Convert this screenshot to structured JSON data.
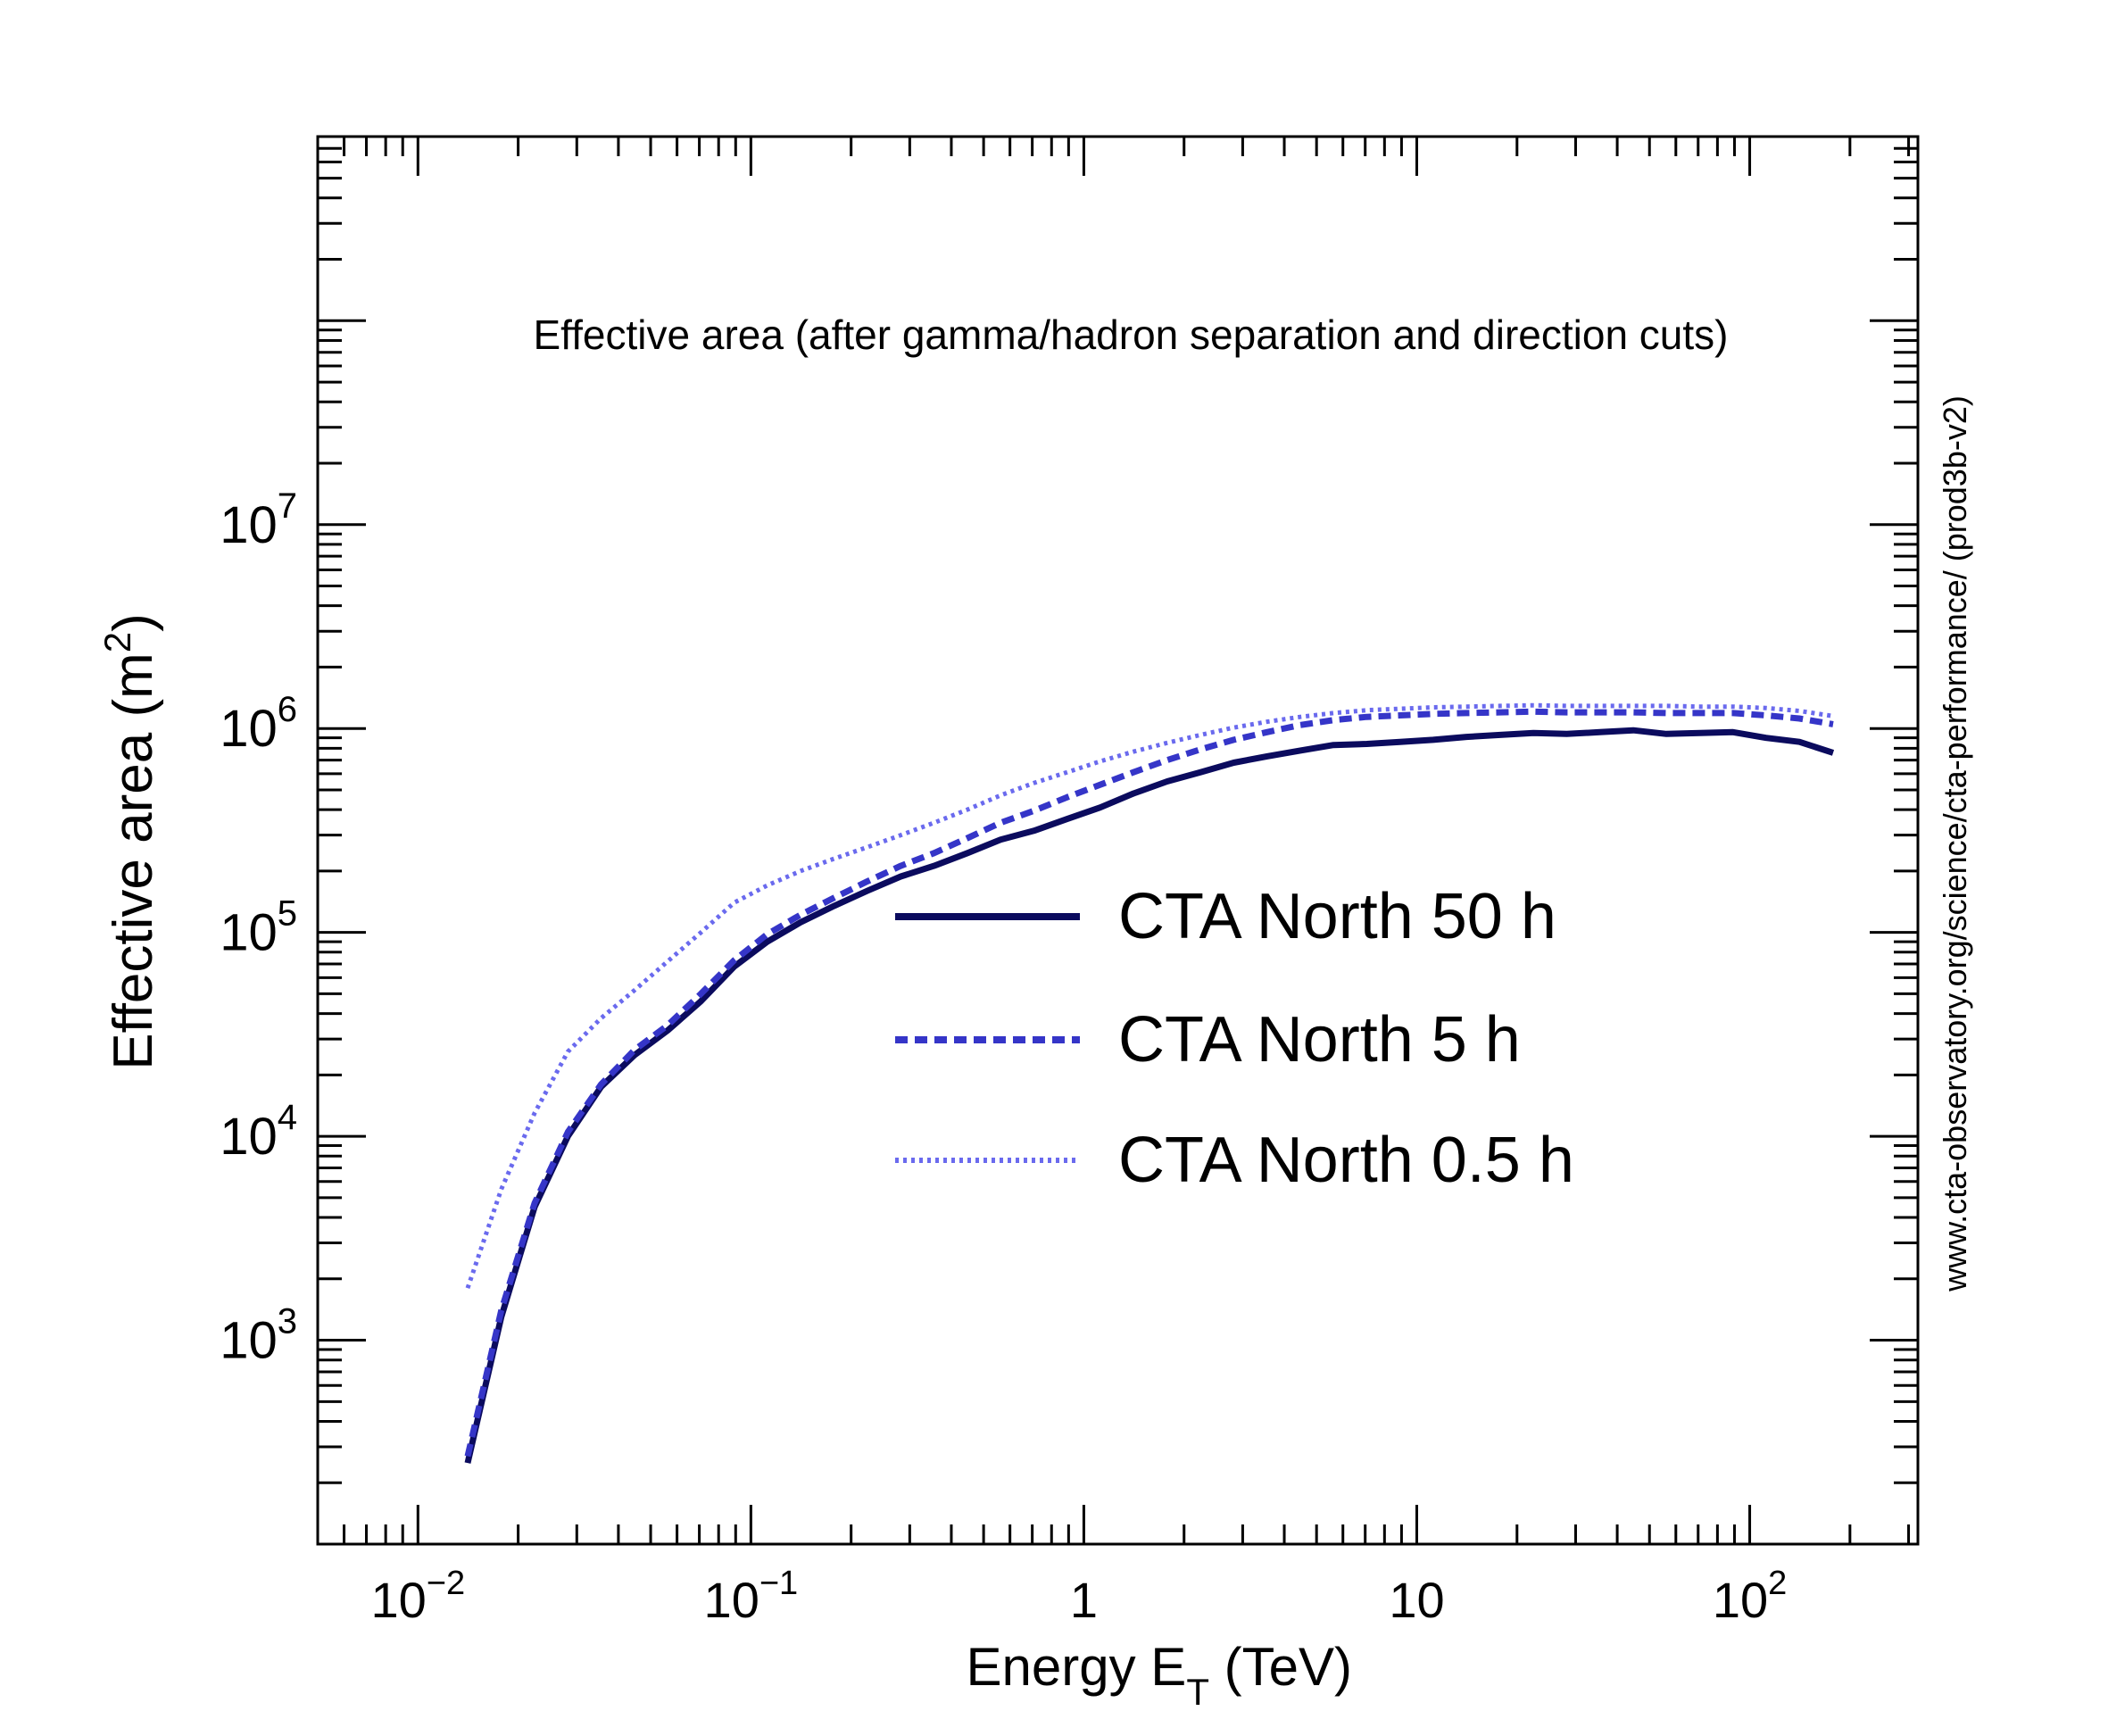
{
  "chart_data": {
    "type": "line",
    "annotation": "Effective area (after gamma/hadron separation and direction cuts)",
    "xlabel": "Energy E",
    "xlabel_sub": "T",
    "xlabel_suffix": " (TeV)",
    "ylabel": "Effective area (m",
    "ylabel_sup": "2",
    "ylabel_suffix": ")",
    "side_text": "www.cta-observatory.org/science/cta-performance/ (prod3b-v2)",
    "x_scale": "log",
    "y_scale": "log",
    "xlim": [
      0.005,
      320
    ],
    "ylim": [
      100,
      800000000
    ],
    "x_ticks": [
      {
        "base": "10",
        "exp": "−2",
        "value": 0.01
      },
      {
        "base": "10",
        "exp": "−1",
        "value": 0.1
      },
      {
        "base": "1",
        "exp": "",
        "value": 1
      },
      {
        "base": "10",
        "exp": "",
        "value": 10
      },
      {
        "base": "10",
        "exp": "2",
        "value": 100
      }
    ],
    "y_ticks": [
      {
        "base": "10",
        "exp": "3",
        "value": 1000
      },
      {
        "base": "10",
        "exp": "4",
        "value": 10000
      },
      {
        "base": "10",
        "exp": "5",
        "value": 100000
      },
      {
        "base": "10",
        "exp": "6",
        "value": 1000000
      },
      {
        "base": "10",
        "exp": "7",
        "value": 10000000
      }
    ],
    "legend_position": "center-right",
    "series": [
      {
        "name": "CTA North 50 h",
        "color": "#0b0b5e",
        "style": "solid",
        "points": [
          [
            0.0141,
            250
          ],
          [
            0.0178,
            1300
          ],
          [
            0.0224,
            4500
          ],
          [
            0.0282,
            10000
          ],
          [
            0.0355,
            17500
          ],
          [
            0.0447,
            25000
          ],
          [
            0.0562,
            33000
          ],
          [
            0.0708,
            46000
          ],
          [
            0.0891,
            68000
          ],
          [
            0.112,
            90000
          ],
          [
            0.141,
            112000
          ],
          [
            0.178,
            135000
          ],
          [
            0.224,
            160000
          ],
          [
            0.282,
            188000
          ],
          [
            0.355,
            212000
          ],
          [
            0.447,
            245000
          ],
          [
            0.562,
            285000
          ],
          [
            0.708,
            315000
          ],
          [
            0.891,
            360000
          ],
          [
            1.12,
            410000
          ],
          [
            1.41,
            480000
          ],
          [
            1.78,
            550000
          ],
          [
            2.24,
            610000
          ],
          [
            2.82,
            680000
          ],
          [
            3.55,
            730000
          ],
          [
            4.47,
            780000
          ],
          [
            5.62,
            830000
          ],
          [
            7.08,
            840000
          ],
          [
            8.91,
            860000
          ],
          [
            11.2,
            880000
          ],
          [
            14.1,
            910000
          ],
          [
            17.8,
            930000
          ],
          [
            22.4,
            950000
          ],
          [
            28.2,
            940000
          ],
          [
            35.5,
            960000
          ],
          [
            44.7,
            980000
          ],
          [
            56.2,
            940000
          ],
          [
            70.8,
            950000
          ],
          [
            89.1,
            960000
          ],
          [
            112,
            900000
          ],
          [
            141,
            860000
          ],
          [
            178,
            760000
          ]
        ]
      },
      {
        "name": "CTA North 5 h",
        "color": "#3535c8",
        "style": "dashed",
        "points": [
          [
            0.0141,
            270
          ],
          [
            0.0178,
            1400
          ],
          [
            0.0224,
            4700
          ],
          [
            0.0282,
            10500
          ],
          [
            0.0355,
            18000
          ],
          [
            0.0447,
            26500
          ],
          [
            0.0562,
            35000
          ],
          [
            0.0708,
            50000
          ],
          [
            0.0891,
            73000
          ],
          [
            0.112,
            98000
          ],
          [
            0.141,
            122000
          ],
          [
            0.178,
            148000
          ],
          [
            0.224,
            178000
          ],
          [
            0.282,
            212000
          ],
          [
            0.355,
            245000
          ],
          [
            0.447,
            290000
          ],
          [
            0.562,
            345000
          ],
          [
            0.708,
            395000
          ],
          [
            0.891,
            460000
          ],
          [
            1.12,
            530000
          ],
          [
            1.41,
            610000
          ],
          [
            1.78,
            700000
          ],
          [
            2.24,
            790000
          ],
          [
            2.82,
            880000
          ],
          [
            3.55,
            960000
          ],
          [
            4.47,
            1040000
          ],
          [
            5.62,
            1100000
          ],
          [
            7.08,
            1140000
          ],
          [
            8.91,
            1160000
          ],
          [
            11.2,
            1180000
          ],
          [
            14.1,
            1190000
          ],
          [
            17.8,
            1200000
          ],
          [
            22.4,
            1210000
          ],
          [
            28.2,
            1200000
          ],
          [
            35.5,
            1200000
          ],
          [
            44.7,
            1200000
          ],
          [
            56.2,
            1190000
          ],
          [
            70.8,
            1190000
          ],
          [
            89.1,
            1190000
          ],
          [
            112,
            1160000
          ],
          [
            141,
            1120000
          ],
          [
            178,
            1050000
          ]
        ]
      },
      {
        "name": "CTA North 0.5 h",
        "color": "#6a6aee",
        "style": "dotted",
        "points": [
          [
            0.0141,
            1800
          ],
          [
            0.0178,
            5500
          ],
          [
            0.0224,
            13000
          ],
          [
            0.0282,
            26000
          ],
          [
            0.0355,
            38000
          ],
          [
            0.0447,
            52000
          ],
          [
            0.0562,
            72000
          ],
          [
            0.0708,
            100000
          ],
          [
            0.0891,
            140000
          ],
          [
            0.112,
            170000
          ],
          [
            0.141,
            200000
          ],
          [
            0.178,
            230000
          ],
          [
            0.224,
            262000
          ],
          [
            0.282,
            300000
          ],
          [
            0.355,
            345000
          ],
          [
            0.447,
            400000
          ],
          [
            0.562,
            470000
          ],
          [
            0.708,
            540000
          ],
          [
            0.891,
            610000
          ],
          [
            1.12,
            690000
          ],
          [
            1.41,
            770000
          ],
          [
            1.78,
            850000
          ],
          [
            2.24,
            930000
          ],
          [
            2.82,
            1010000
          ],
          [
            3.55,
            1080000
          ],
          [
            4.47,
            1140000
          ],
          [
            5.62,
            1190000
          ],
          [
            7.08,
            1230000
          ],
          [
            8.91,
            1250000
          ],
          [
            11.2,
            1270000
          ],
          [
            14.1,
            1280000
          ],
          [
            17.8,
            1290000
          ],
          [
            22.4,
            1300000
          ],
          [
            28.2,
            1290000
          ],
          [
            35.5,
            1290000
          ],
          [
            44.7,
            1290000
          ],
          [
            56.2,
            1290000
          ],
          [
            70.8,
            1280000
          ],
          [
            89.1,
            1280000
          ],
          [
            112,
            1260000
          ],
          [
            141,
            1220000
          ],
          [
            178,
            1150000
          ]
        ]
      }
    ]
  }
}
